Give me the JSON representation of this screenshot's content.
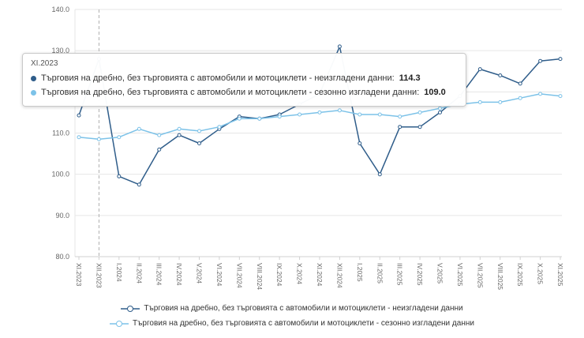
{
  "colors": {
    "series1": "#2f5d8a",
    "series2": "#7cc2e8",
    "grid": "#e6e6e6",
    "axis_line": "#d0d0d0",
    "axis_label": "#666666",
    "crosshair": "#b0b0b0",
    "tooltip_border": "#c9c9c9"
  },
  "chart_data": {
    "type": "line",
    "title": "",
    "xlabel": "",
    "ylabel": "",
    "ylim": [
      80.0,
      140.0
    ],
    "ytick_step": 10,
    "grid": true,
    "legend_position": "bottom",
    "categories": [
      "XI.2023",
      "XII.2023",
      "I.2024",
      "II.2024",
      "III.2024",
      "IV.2024",
      "V.2024",
      "VI.2024",
      "VII.2024",
      "VIII.2024",
      "IX.2024",
      "X.2024",
      "XI.2024",
      "XII.2024",
      "I.2025",
      "II.2025",
      "III.2025",
      "IV.2025",
      "V.2025",
      "VI.2025",
      "VII.2025",
      "VIII.2025",
      "IX.2025",
      "X.2025",
      "XI.2025"
    ],
    "series": [
      {
        "name": "Търговия на дребно, без търговията с автомобили и мотоциклети - неизгладени данни",
        "color": "#2f5d8a",
        "values": [
          114.3,
          128.0,
          99.5,
          97.5,
          106.0,
          109.5,
          107.5,
          111.0,
          114.0,
          113.5,
          114.5,
          117.0,
          119.5,
          131.0,
          107.5,
          100.0,
          111.5,
          111.5,
          115.0,
          119.0,
          125.5,
          124.0,
          122.0,
          127.5,
          128.0
        ]
      },
      {
        "name": "Търговия на дребно, без търговията с автомобили и мотоциклети - сезонно изгладени данни",
        "color": "#7cc2e8",
        "values": [
          109.0,
          108.5,
          109.0,
          111.0,
          109.5,
          111.0,
          110.5,
          111.5,
          113.5,
          113.5,
          114.0,
          114.5,
          115.0,
          115.5,
          114.5,
          114.5,
          114.0,
          115.0,
          116.0,
          117.0,
          117.5,
          117.5,
          118.5,
          119.5,
          119.0
        ]
      }
    ]
  },
  "tooltip": {
    "header": "XI.2023",
    "crosshair_index": 1,
    "rows": [
      {
        "label": "Търговия на дребно, без търговията с автомобили и мотоциклети - неизгладени данни:",
        "value": "114.3"
      },
      {
        "label": "Търговия на дребно, без търговията с автомобили и мотоциклети - сезонно изгладени данни:",
        "value": "109.0"
      }
    ]
  }
}
